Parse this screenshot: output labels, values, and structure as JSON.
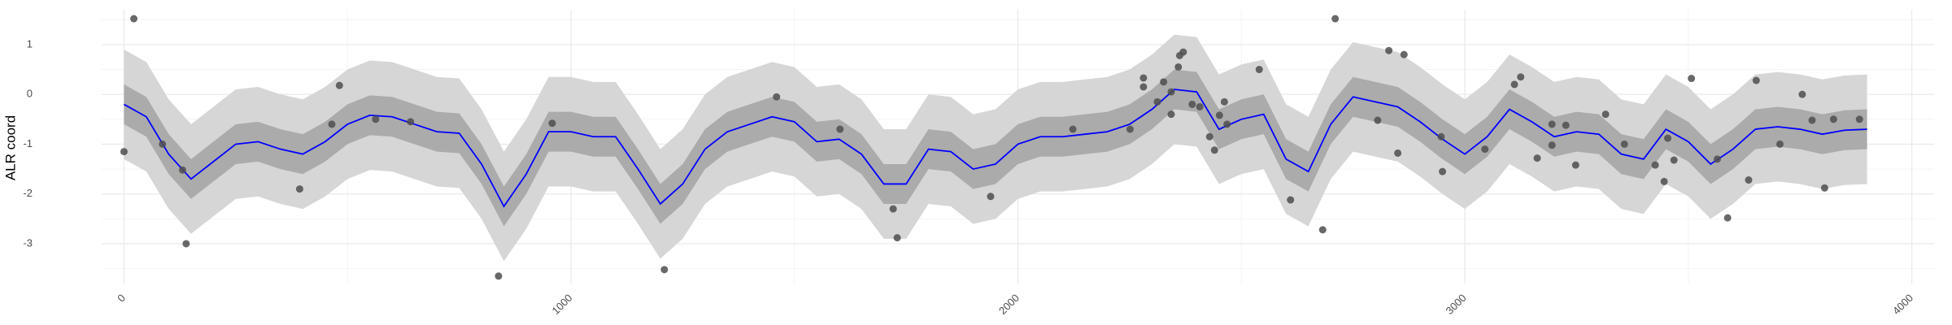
{
  "chart_data": {
    "type": "line",
    "y_label": "ALR coord",
    "xlim": [
      -50,
      4050
    ],
    "ylim": [
      -3.8,
      1.7
    ],
    "xticks": [
      0,
      1000,
      2000,
      3000,
      4000
    ],
    "yticks": [
      -3,
      -2,
      -1,
      0,
      1
    ],
    "xminor": [
      500,
      1500,
      2500,
      3500
    ],
    "yminor": [
      -3.5,
      -2.5,
      -1.5,
      -0.5,
      0.5,
      1.5
    ],
    "grid": true,
    "x": [
      0,
      50,
      100,
      150,
      200,
      250,
      300,
      350,
      400,
      450,
      500,
      550,
      600,
      650,
      700,
      750,
      800,
      850,
      900,
      950,
      1000,
      1050,
      1100,
      1150,
      1200,
      1250,
      1300,
      1350,
      1400,
      1450,
      1500,
      1550,
      1600,
      1650,
      1700,
      1750,
      1800,
      1850,
      1900,
      1950,
      2000,
      2050,
      2100,
      2150,
      2200,
      2250,
      2300,
      2350,
      2400,
      2450,
      2500,
      2550,
      2600,
      2650,
      2700,
      2750,
      2800,
      2850,
      2900,
      2950,
      3000,
      3050,
      3100,
      3150,
      3200,
      3250,
      3300,
      3350,
      3400,
      3450,
      3500,
      3550,
      3600,
      3650,
      3700,
      3750,
      3800,
      3850,
      3900
    ],
    "bands": [
      {
        "color": "#d6d6d6",
        "lower": [
          -1.3,
          -1.55,
          -2.3,
          -2.8,
          -2.45,
          -2.1,
          -2.05,
          -2.2,
          -2.3,
          -2.05,
          -1.7,
          -1.52,
          -1.55,
          -1.7,
          -1.85,
          -1.88,
          -2.5,
          -3.35,
          -2.7,
          -1.85,
          -1.85,
          -1.95,
          -1.95,
          -2.6,
          -3.3,
          -2.9,
          -2.2,
          -1.85,
          -1.7,
          -1.55,
          -1.65,
          -2.05,
          -2.0,
          -2.3,
          -2.9,
          -2.9,
          -2.2,
          -2.25,
          -2.6,
          -2.5,
          -2.1,
          -1.95,
          -1.95,
          -1.9,
          -1.85,
          -1.7,
          -1.4,
          -1.0,
          -1.05,
          -1.8,
          -1.6,
          -1.5,
          -2.4,
          -2.65,
          -1.7,
          -1.15,
          -1.25,
          -1.35,
          -1.65,
          -2.0,
          -2.3,
          -1.95,
          -1.4,
          -1.65,
          -1.95,
          -1.85,
          -1.9,
          -2.3,
          -2.4,
          -1.8,
          -2.05,
          -2.5,
          -2.2,
          -1.8,
          -1.75,
          -1.8,
          -1.9,
          -1.82,
          -1.8
        ],
        "upper": [
          0.9,
          0.65,
          -0.1,
          -0.6,
          -0.25,
          0.1,
          0.15,
          0.0,
          -0.1,
          0.15,
          0.5,
          0.68,
          0.65,
          0.5,
          0.35,
          0.32,
          -0.3,
          -1.15,
          -0.5,
          0.35,
          0.35,
          0.25,
          0.25,
          -0.4,
          -1.1,
          -0.7,
          0.0,
          0.35,
          0.5,
          0.65,
          0.55,
          0.15,
          0.2,
          -0.1,
          -0.7,
          -0.7,
          0.0,
          -0.05,
          -0.4,
          -0.3,
          0.1,
          0.25,
          0.25,
          0.3,
          0.35,
          0.5,
          0.8,
          1.2,
          1.15,
          0.4,
          0.6,
          0.7,
          -0.2,
          -0.45,
          0.5,
          1.05,
          0.95,
          0.85,
          0.55,
          0.2,
          -0.1,
          0.25,
          0.8,
          0.55,
          0.25,
          0.35,
          0.3,
          -0.1,
          -0.2,
          0.4,
          0.15,
          -0.3,
          0.0,
          0.4,
          0.45,
          0.4,
          0.3,
          0.38,
          0.4
        ]
      },
      {
        "color": "#ababab",
        "lower": [
          -0.6,
          -0.85,
          -1.6,
          -2.1,
          -1.75,
          -1.4,
          -1.35,
          -1.5,
          -1.6,
          -1.35,
          -1.0,
          -0.82,
          -0.85,
          -1.0,
          -1.15,
          -1.18,
          -1.8,
          -2.65,
          -2.0,
          -1.15,
          -1.15,
          -1.25,
          -1.25,
          -1.9,
          -2.6,
          -2.2,
          -1.5,
          -1.15,
          -1.0,
          -0.85,
          -0.95,
          -1.35,
          -1.3,
          -1.6,
          -2.2,
          -2.2,
          -1.5,
          -1.55,
          -1.9,
          -1.8,
          -1.4,
          -1.25,
          -1.25,
          -1.2,
          -1.15,
          -1.0,
          -0.7,
          -0.3,
          -0.35,
          -1.1,
          -0.9,
          -0.8,
          -1.7,
          -1.95,
          -1.0,
          -0.45,
          -0.55,
          -0.65,
          -0.95,
          -1.3,
          -1.6,
          -1.25,
          -0.7,
          -0.95,
          -1.25,
          -1.15,
          -1.2,
          -1.6,
          -1.7,
          -1.1,
          -1.35,
          -1.8,
          -1.5,
          -1.1,
          -1.05,
          -1.1,
          -1.2,
          -1.12,
          -1.1
        ],
        "upper": [
          0.2,
          -0.05,
          -0.8,
          -1.3,
          -0.95,
          -0.6,
          -0.55,
          -0.7,
          -0.8,
          -0.55,
          -0.2,
          -0.02,
          -0.05,
          -0.2,
          -0.35,
          -0.38,
          -1.0,
          -1.85,
          -1.2,
          -0.35,
          -0.35,
          -0.45,
          -0.45,
          -1.1,
          -1.8,
          -1.4,
          -0.7,
          -0.35,
          -0.2,
          -0.05,
          -0.15,
          -0.55,
          -0.5,
          -0.8,
          -1.4,
          -1.4,
          -0.7,
          -0.75,
          -1.1,
          -1.0,
          -0.6,
          -0.45,
          -0.45,
          -0.4,
          -0.35,
          -0.2,
          0.1,
          0.5,
          0.45,
          -0.3,
          -0.1,
          0.0,
          -0.9,
          -1.15,
          -0.2,
          0.35,
          0.25,
          0.15,
          -0.15,
          -0.5,
          -0.8,
          -0.45,
          0.1,
          -0.15,
          -0.45,
          -0.35,
          -0.4,
          -0.8,
          -0.9,
          -0.3,
          -0.55,
          -1.0,
          -0.7,
          -0.3,
          -0.25,
          -0.3,
          -0.4,
          -0.32,
          -0.3
        ]
      }
    ],
    "line": {
      "color": "#0000ff",
      "values": [
        -0.2,
        -0.45,
        -1.2,
        -1.7,
        -1.35,
        -1.0,
        -0.95,
        -1.1,
        -1.2,
        -0.95,
        -0.6,
        -0.42,
        -0.45,
        -0.6,
        -0.75,
        -0.78,
        -1.4,
        -2.25,
        -1.6,
        -0.75,
        -0.75,
        -0.85,
        -0.85,
        -1.5,
        -2.2,
        -1.8,
        -1.1,
        -0.75,
        -0.6,
        -0.45,
        -0.55,
        -0.95,
        -0.9,
        -1.2,
        -1.8,
        -1.8,
        -1.1,
        -1.15,
        -1.5,
        -1.4,
        -1.0,
        -0.85,
        -0.85,
        -0.8,
        -0.75,
        -0.6,
        -0.3,
        0.1,
        0.05,
        -0.7,
        -0.5,
        -0.4,
        -1.3,
        -1.55,
        -0.6,
        -0.05,
        -0.15,
        -0.25,
        -0.55,
        -0.9,
        -1.2,
        -0.85,
        -0.3,
        -0.55,
        -0.85,
        -0.75,
        -0.8,
        -1.2,
        -1.3,
        -0.7,
        -0.95,
        -1.4,
        -1.1,
        -0.7,
        -0.65,
        -0.7,
        -0.8,
        -0.72,
        -0.7
      ]
    },
    "points": {
      "color": "#4d4d4d",
      "x": [
        0,
        22,
        86,
        131,
        139,
        393,
        465,
        482,
        563,
        641,
        838,
        958,
        1209,
        1460,
        1602,
        1721,
        1730,
        1939,
        2123,
        2251,
        2281,
        2281,
        2312,
        2326,
        2343,
        2343,
        2359,
        2362,
        2370,
        2390,
        2407,
        2429,
        2440,
        2451,
        2462,
        2468,
        2540,
        2610,
        2682,
        2710,
        2805,
        2830,
        2850,
        2864,
        2947,
        2950,
        3045,
        3111,
        3125,
        3162,
        3195,
        3195,
        3226,
        3248,
        3315,
        3357,
        3426,
        3446,
        3454,
        3468,
        3507,
        3565,
        3588,
        3635,
        3652,
        3705,
        3755,
        3777,
        3805,
        3825,
        3883
      ],
      "y": [
        -1.15,
        1.52,
        -1.0,
        -1.52,
        -3.0,
        -1.9,
        -0.6,
        0.18,
        -0.5,
        -0.55,
        -3.65,
        -0.58,
        -3.52,
        -0.05,
        -0.7,
        -2.3,
        -2.88,
        -2.05,
        -0.7,
        -0.7,
        0.33,
        0.15,
        -0.15,
        0.25,
        -0.4,
        0.05,
        0.55,
        0.78,
        0.85,
        -0.2,
        -0.25,
        -0.85,
        -1.12,
        -0.42,
        -0.15,
        -0.6,
        0.5,
        -2.12,
        -2.72,
        1.52,
        -0.52,
        0.88,
        -1.18,
        0.8,
        -0.85,
        -1.55,
        -1.1,
        0.2,
        0.35,
        -1.28,
        -0.6,
        -1.02,
        -0.62,
        -1.42,
        -0.4,
        -1.0,
        -1.42,
        -1.75,
        -0.88,
        -1.32,
        0.32,
        -1.3,
        -2.48,
        -1.72,
        0.28,
        -1.0,
        0.0,
        -0.52,
        -1.88,
        -0.5,
        -0.5
      ]
    }
  }
}
